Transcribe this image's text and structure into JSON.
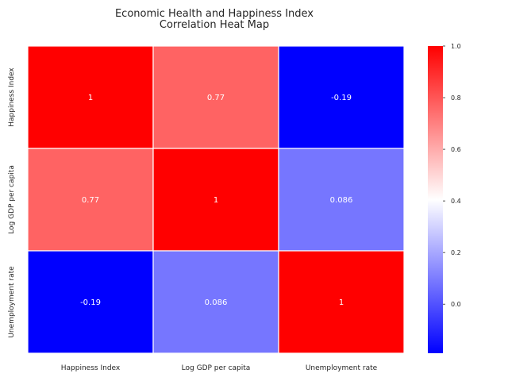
{
  "chart_data": {
    "type": "heatmap",
    "title_lines": [
      "Economic Health and Happiness Index",
      "Correlation Heat Map"
    ],
    "x_categories": [
      "Happiness Index",
      "Log GDP per capita",
      "Unemployment rate"
    ],
    "y_categories": [
      "Happiness Index",
      "Log GDP per capita",
      "Unemployment rate"
    ],
    "values": [
      [
        1,
        0.77,
        -0.19
      ],
      [
        0.77,
        1,
        0.086
      ],
      [
        -0.19,
        0.086,
        1
      ]
    ],
    "value_labels": [
      [
        "1",
        "0.77",
        "-0.19"
      ],
      [
        "0.77",
        "1",
        "0.086"
      ],
      [
        "-0.19",
        "0.086",
        "1"
      ]
    ],
    "colorscale": {
      "min": -0.19,
      "max": 1,
      "colors": [
        "#0000ff",
        "#ffffff",
        "#ff0000"
      ],
      "ticks": [
        0.0,
        0.2,
        0.4,
        0.6,
        0.8,
        1.0
      ],
      "tick_labels": [
        "0.0",
        "0.2",
        "0.4",
        "0.6",
        "0.8",
        "1.0"
      ]
    },
    "grid": true
  }
}
